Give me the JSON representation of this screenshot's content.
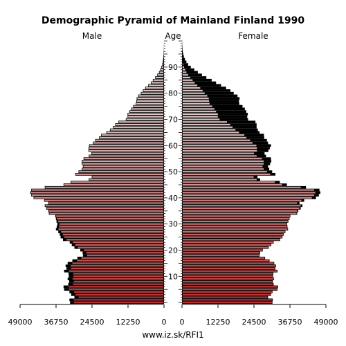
{
  "chart_data": {
    "type": "bar",
    "title": "Demographic Pyramid of Mainland Finland 1990",
    "labels": {
      "male": "Male",
      "age": "Age",
      "female": "Female"
    },
    "source": "www.iz.sk/RFI1",
    "x_ticks_male": [
      "49000",
      "36750",
      "24500",
      "12250",
      "0"
    ],
    "x_ticks_female": [
      "0",
      "12250",
      "24500",
      "36750",
      "49000"
    ],
    "age_ticks": [
      "10",
      "20",
      "30",
      "40",
      "50",
      "60",
      "70",
      "80",
      "90"
    ],
    "xlim": [
      0,
      49000
    ],
    "ages": [
      0,
      1,
      2,
      3,
      4,
      5,
      6,
      7,
      8,
      9,
      10,
      11,
      12,
      13,
      14,
      15,
      16,
      17,
      18,
      19,
      20,
      21,
      22,
      23,
      24,
      25,
      26,
      27,
      28,
      29,
      30,
      31,
      32,
      33,
      34,
      35,
      36,
      37,
      38,
      39,
      40,
      41,
      42,
      43,
      44,
      45,
      46,
      47,
      48,
      49,
      50,
      51,
      52,
      53,
      54,
      55,
      56,
      57,
      58,
      59,
      60,
      61,
      62,
      63,
      64,
      65,
      66,
      67,
      68,
      69,
      70,
      71,
      72,
      73,
      74,
      75,
      76,
      77,
      78,
      79,
      80,
      81,
      82,
      83,
      84,
      85,
      86,
      87,
      88,
      89,
      90,
      91,
      92,
      93,
      94,
      95,
      96,
      97,
      98,
      99,
      100
    ],
    "male": [
      32000,
      32200,
      30500,
      31600,
      32200,
      34000,
      34200,
      32600,
      32300,
      32800,
      32400,
      32500,
      34000,
      33200,
      33500,
      32800,
      31200,
      29500,
      27600,
      27700,
      28500,
      30500,
      31400,
      32100,
      34400,
      35200,
      35500,
      36000,
      36800,
      36500,
      36300,
      36600,
      36800,
      37000,
      39200,
      39400,
      40100,
      40600,
      39400,
      40800,
      44400,
      45200,
      45600,
      45200,
      40600,
      34200,
      31800,
      25600,
      24600,
      30200,
      29100,
      28000,
      27600,
      28000,
      28000,
      27400,
      25600,
      24700,
      25700,
      25700,
      25500,
      24200,
      23400,
      22100,
      21400,
      19600,
      18400,
      17400,
      16600,
      15500,
      13000,
      12400,
      12400,
      11800,
      11200,
      10500,
      9600,
      9400,
      9300,
      8800,
      7900,
      7200,
      6400,
      5400,
      4500,
      3800,
      3000,
      2300,
      1700,
      1300,
      900,
      600,
      420,
      290,
      190,
      120,
      80,
      50,
      30,
      20,
      10
    ],
    "female": [
      30800,
      30900,
      29300,
      30300,
      30800,
      32500,
      32700,
      31200,
      30900,
      31300,
      31000,
      31100,
      32500,
      31800,
      32000,
      31400,
      29800,
      28300,
      26400,
      26600,
      27500,
      29500,
      30400,
      31200,
      33400,
      34200,
      34600,
      35200,
      36100,
      35900,
      35800,
      36200,
      36600,
      36900,
      39200,
      39600,
      40400,
      41000,
      40000,
      41600,
      45600,
      46600,
      47100,
      46800,
      42200,
      35700,
      33300,
      26600,
      25700,
      31800,
      30700,
      29700,
      29300,
      30000,
      30400,
      30300,
      28600,
      28100,
      29400,
      29900,
      30300,
      29300,
      28900,
      28000,
      27900,
      26400,
      25800,
      25400,
      25400,
      25000,
      22500,
      22200,
      22400,
      21900,
      21400,
      20600,
      19500,
      19400,
      19600,
      18900,
      17600,
      16500,
      15000,
      13300,
      11600,
      10100,
      8300,
      6800,
      5400,
      4200,
      3000,
      2100,
      1500,
      1000,
      650,
      420,
      260,
      160,
      100,
      60,
      40
    ],
    "excess_color_female": "#000000",
    "excess_color_male": "#000000",
    "male_gradient": [
      "#b93030",
      "#d9c3c3"
    ],
    "female_gradient": [
      "#b93030",
      "#d9c3c3"
    ]
  }
}
